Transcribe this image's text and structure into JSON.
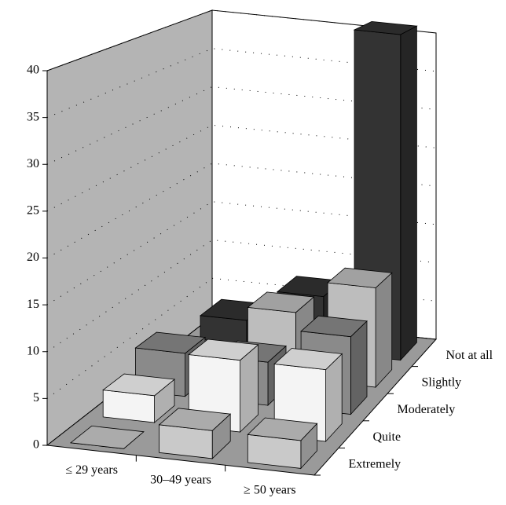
{
  "chart_data": {
    "type": "bar3d",
    "categories": [
      "≤ 29 years",
      "30–49 years",
      "≥ 50 years"
    ],
    "series": [
      {
        "name": "Extremely",
        "color": "#c9c9c9",
        "values": [
          0,
          3,
          3
        ]
      },
      {
        "name": "Quite",
        "color": "#f4f4f4",
        "values": [
          3,
          8,
          8
        ]
      },
      {
        "name": "Moderately",
        "color": "#8a8a8a",
        "values": [
          5,
          5,
          9
        ]
      },
      {
        "name": "Slightly",
        "color": "#bdbdbd",
        "values": [
          1,
          8,
          12
        ]
      },
      {
        "name": "Not at all",
        "color": "#333333",
        "values": [
          3,
          7,
          41
        ]
      }
    ],
    "ylim": [
      0,
      40
    ],
    "yticks": [
      0,
      5,
      10,
      15,
      20,
      25,
      30,
      35,
      40
    ],
    "grid": true
  }
}
